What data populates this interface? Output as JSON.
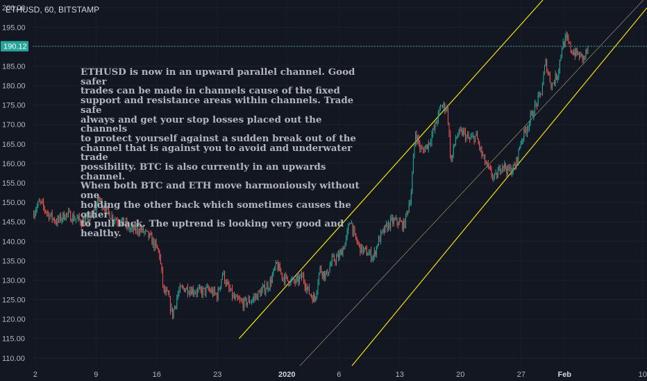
{
  "header": {
    "title": "ETHUSD, 60, BITSTAMP"
  },
  "annotation": {
    "text": "ETHUSD is now in an upward parallel channel. Good safer\ntrades can be made in channels cause of the fixed\nsupport and resistance areas within channels. Trade safe\nalways and get your stop losses placed out the channels\nto protect yourself against a sudden break out of the\nchannel that is against you to avoid and underwater trade\npossibility. BTC is also currently in an upwards channel.\nWhen both BTC and ETH move harmoniously without one\nholding the other back which sometimes causes the other\nto pull back. The uptrend is looking very good and\nhealthy."
  },
  "colors": {
    "background": "#131722",
    "up": "#26a69a",
    "down": "#ef5350",
    "channel": "#f5e400",
    "midline": "#8a8a5c",
    "price_line": "#26a69a"
  },
  "chart_data": {
    "type": "candlestick",
    "title": "ETHUSD, 60, BITSTAMP",
    "symbol": "ETHUSD",
    "interval": "60",
    "exchange": "BITSTAMP",
    "current_price": "190.12",
    "y_ticks": [
      "200.00",
      "195.00",
      "190.00",
      "185.00",
      "180.00",
      "175.00",
      "170.00",
      "165.00",
      "160.00",
      "155.00",
      "150.00",
      "145.00",
      "140.00",
      "135.00",
      "130.00",
      "125.00",
      "120.00",
      "115.00",
      "110.00"
    ],
    "x_ticks": [
      {
        "label": "2",
        "day": 2,
        "bold": false
      },
      {
        "label": "9",
        "day": 9,
        "bold": false
      },
      {
        "label": "16",
        "day": 16,
        "bold": false
      },
      {
        "label": "23",
        "day": 23,
        "bold": false
      },
      {
        "label": "2020",
        "day": 31,
        "bold": true
      },
      {
        "label": "6",
        "day": 37,
        "bold": false
      },
      {
        "label": "13",
        "day": 44,
        "bold": false
      },
      {
        "label": "20",
        "day": 51,
        "bold": false
      },
      {
        "label": "27",
        "day": 58,
        "bold": false
      },
      {
        "label": "Feb",
        "day": 63,
        "bold": true
      },
      {
        "label": "10",
        "day": 72,
        "bold": false
      }
    ],
    "ylim": [
      108,
      202
    ],
    "xlim": [
      1.7,
      72.5
    ],
    "price_path": [
      [
        1.7,
        147
      ],
      [
        2.5,
        150
      ],
      [
        3.5,
        147
      ],
      [
        4.5,
        145
      ],
      [
        5.5,
        147
      ],
      [
        6.5,
        146
      ],
      [
        7.5,
        145
      ],
      [
        8.5,
        146
      ],
      [
        9.3,
        151
      ],
      [
        10.2,
        148
      ],
      [
        11,
        146
      ],
      [
        12,
        145
      ],
      [
        13,
        143
      ],
      [
        14.2,
        143
      ],
      [
        15.2,
        141
      ],
      [
        16.3,
        137
      ],
      [
        16.8,
        127
      ],
      [
        17.3,
        126
      ],
      [
        17.8,
        121
      ],
      [
        18.5,
        127
      ],
      [
        19.2,
        128
      ],
      [
        20,
        127.5
      ],
      [
        21,
        127
      ],
      [
        22,
        127.5
      ],
      [
        23,
        126
      ],
      [
        23.6,
        132
      ],
      [
        24.2,
        128
      ],
      [
        25,
        125
      ],
      [
        26,
        124
      ],
      [
        27,
        125
      ],
      [
        28,
        127
      ],
      [
        29,
        129
      ],
      [
        29.8,
        134
      ],
      [
        30.5,
        131
      ],
      [
        31,
        130
      ],
      [
        32,
        129.5
      ],
      [
        32.8,
        131
      ],
      [
        33.5,
        127
      ],
      [
        34.2,
        125
      ],
      [
        34.8,
        133
      ],
      [
        35.5,
        131
      ],
      [
        36.2,
        135
      ],
      [
        37,
        136
      ],
      [
        37.8,
        140
      ],
      [
        38.3,
        146
      ],
      [
        38.8,
        141
      ],
      [
        39.5,
        138
      ],
      [
        40.3,
        137
      ],
      [
        41,
        136
      ],
      [
        41.5,
        140
      ],
      [
        42.3,
        143
      ],
      [
        43,
        145
      ],
      [
        43.8,
        145
      ],
      [
        44.5,
        144
      ],
      [
        45.3,
        152
      ],
      [
        45.8,
        168
      ],
      [
        46.5,
        163
      ],
      [
        47.3,
        165
      ],
      [
        48,
        169
      ],
      [
        48.8,
        175
      ],
      [
        49.5,
        174
      ],
      [
        49.9,
        160
      ],
      [
        50.5,
        167
      ],
      [
        51.3,
        168
      ],
      [
        52,
        166
      ],
      [
        52.8,
        167
      ],
      [
        53.5,
        162
      ],
      [
        54.3,
        158
      ],
      [
        55,
        156
      ],
      [
        55.8,
        160
      ],
      [
        56.5,
        158
      ],
      [
        57.3,
        159
      ],
      [
        58,
        166
      ],
      [
        58.8,
        170
      ],
      [
        59.5,
        174
      ],
      [
        60.3,
        178
      ],
      [
        60.8,
        186
      ],
      [
        61.5,
        180
      ],
      [
        62.2,
        183
      ],
      [
        62.7,
        190
      ],
      [
        63.2,
        192
      ],
      [
        63.8,
        189
      ],
      [
        64.5,
        188
      ],
      [
        65.2,
        187
      ],
      [
        65.8,
        190
      ]
    ],
    "channel_upper": [
      [
        25.5,
        115
      ],
      [
        60.5,
        202
      ]
    ],
    "channel_lower": [
      [
        38.5,
        108
      ],
      [
        72.5,
        200
      ]
    ],
    "channel_mid": [
      [
        32.5,
        108
      ],
      [
        72.5,
        203
      ]
    ]
  }
}
